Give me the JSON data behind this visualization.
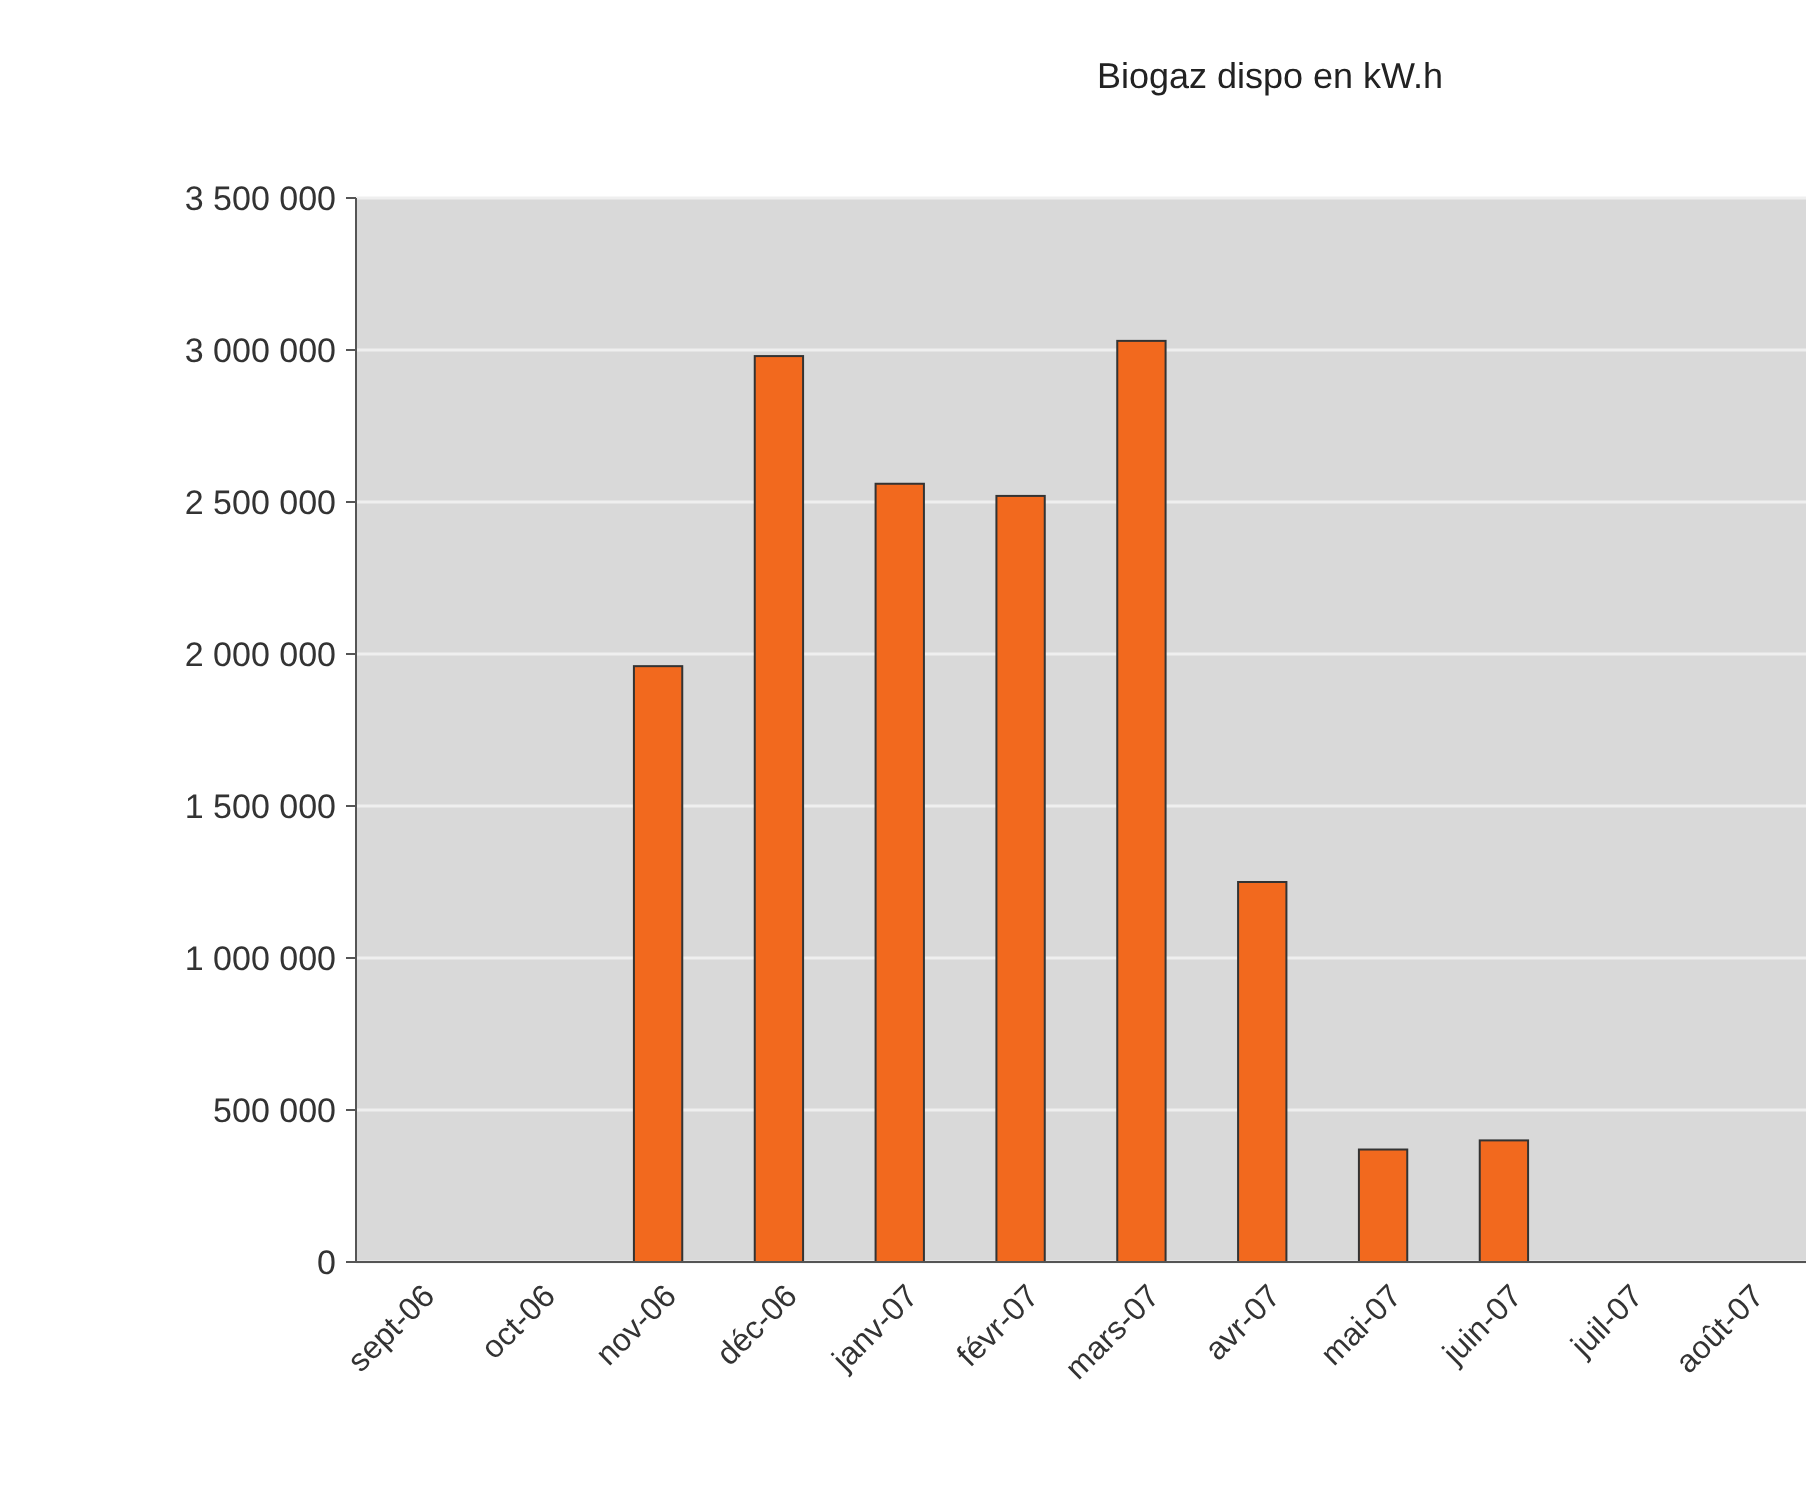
{
  "chart_data": {
    "type": "bar",
    "title": "Biogaz dispo en kW.h",
    "categories": [
      "sept-06",
      "oct-06",
      "nov-06",
      "déc-06",
      "janv-07",
      "févr-07",
      "mars-07",
      "avr-07",
      "mai-07",
      "juin-07",
      "juil-07",
      "août-07"
    ],
    "values": [
      null,
      null,
      1960000,
      2980000,
      2560000,
      2520000,
      3030000,
      1250000,
      370000,
      400000,
      null,
      null
    ],
    "color": "#f2691e",
    "ylim": [
      0,
      3500000
    ],
    "yticks": [
      {
        "value": 0,
        "label": "0"
      },
      {
        "value": 500000,
        "label": "500 000"
      },
      {
        "value": 1000000,
        "label": "1 000 000"
      },
      {
        "value": 1500000,
        "label": "1 500 000"
      },
      {
        "value": 2000000,
        "label": "2 000 000"
      },
      {
        "value": 2500000,
        "label": "2 500 000"
      },
      {
        "value": 3000000,
        "label": "3 000 000"
      },
      {
        "value": 3500000,
        "label": "3 500 000"
      }
    ],
    "grid": "y"
  }
}
